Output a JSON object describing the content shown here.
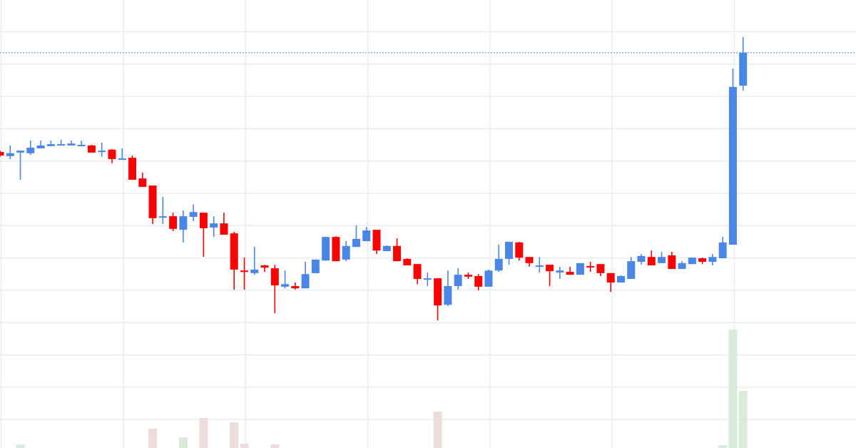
{
  "chart_data": {
    "type": "candlestick",
    "title": "",
    "xlabel": "",
    "ylabel": "",
    "ylim": [
      -8.8,
      129.8
    ],
    "grid": true,
    "y_grid_step": 10,
    "x_grid_every_n_candles": 12,
    "last_price_line": 113.5,
    "colors": {
      "up": "#4a86e8",
      "down": "#ff0000",
      "volume_up": "#d9ebd9",
      "volume_down": "#eedcdc",
      "grid": "#e6eef3",
      "last_price_line": "#4a86e8"
    },
    "candles_ohlc": [
      [
        82.8,
        83.2,
        81.3,
        81.7
      ],
      [
        81.5,
        84.8,
        80.6,
        82.4
      ],
      [
        82.6,
        83.2,
        74.2,
        83.2
      ],
      [
        82.4,
        86.3,
        81.9,
        84.1
      ],
      [
        83.9,
        86.3,
        83.9,
        84.8
      ],
      [
        84.6,
        86.3,
        84.6,
        85.2
      ],
      [
        84.8,
        86.6,
        84.8,
        85.2
      ],
      [
        84.8,
        86.3,
        84.8,
        85.4
      ],
      [
        84.6,
        86.3,
        84.6,
        85.0
      ],
      [
        84.8,
        85.0,
        82.6,
        82.6
      ],
      [
        82.8,
        85.7,
        81.3,
        83.2
      ],
      [
        83.5,
        83.7,
        79.3,
        80.6
      ],
      [
        80.4,
        83.9,
        80.4,
        80.8
      ],
      [
        81.0,
        81.7,
        74.2,
        74.2
      ],
      [
        74.6,
        76.4,
        72.0,
        72.0
      ],
      [
        72.4,
        72.4,
        60.5,
        62.3
      ],
      [
        62.5,
        68.9,
        60.5,
        62.9
      ],
      [
        62.9,
        64.0,
        58.3,
        59.0
      ],
      [
        58.7,
        64.7,
        54.8,
        62.9
      ],
      [
        62.7,
        66.5,
        61.4,
        64.2
      ],
      [
        64.0,
        64.0,
        50.3,
        59.2
      ],
      [
        59.4,
        62.9,
        56.5,
        60.7
      ],
      [
        60.7,
        64.0,
        57.2,
        57.2
      ],
      [
        57.6,
        58.1,
        40.2,
        46.4
      ],
      [
        46.1,
        50.1,
        40.2,
        45.7
      ],
      [
        45.3,
        53.4,
        44.8,
        46.4
      ],
      [
        47.7,
        47.9,
        45.7,
        47.0
      ],
      [
        46.8,
        47.9,
        32.9,
        41.5
      ],
      [
        41.1,
        46.1,
        40.6,
        41.9
      ],
      [
        41.3,
        42.4,
        40.2,
        40.6
      ],
      [
        40.6,
        48.8,
        40.6,
        45.0
      ],
      [
        45.3,
        49.5,
        45.3,
        49.5
      ],
      [
        49.2,
        56.5,
        49.2,
        56.5
      ],
      [
        56.5,
        56.7,
        49.0,
        49.0
      ],
      [
        49.5,
        55.2,
        49.0,
        53.7
      ],
      [
        53.4,
        60.1,
        53.4,
        55.9
      ],
      [
        55.2,
        59.6,
        55.2,
        58.5
      ],
      [
        58.7,
        58.7,
        51.2,
        52.3
      ],
      [
        52.1,
        53.9,
        52.1,
        53.7
      ],
      [
        53.7,
        56.1,
        49.0,
        49.0
      ],
      [
        49.7,
        49.9,
        47.7,
        47.7
      ],
      [
        48.1,
        48.1,
        41.9,
        43.5
      ],
      [
        43.6,
        45.5,
        41.3,
        43.7
      ],
      [
        43.7,
        43.7,
        30.7,
        35.3
      ],
      [
        35.5,
        46.1,
        35.1,
        41.3
      ],
      [
        41.3,
        46.8,
        40.2,
        44.8
      ],
      [
        44.8,
        45.5,
        43.5,
        44.2
      ],
      [
        44.4,
        45.0,
        40.0,
        41.1
      ],
      [
        41.1,
        46.4,
        41.1,
        46.1
      ],
      [
        46.1,
        54.1,
        45.7,
        49.7
      ],
      [
        49.7,
        55.0,
        47.9,
        55.0
      ],
      [
        54.8,
        55.0,
        49.2,
        50.1
      ],
      [
        50.3,
        50.3,
        47.3,
        48.4
      ],
      [
        47.6,
        50.3,
        45.5,
        47.7
      ],
      [
        47.9,
        47.9,
        41.3,
        45.9
      ],
      [
        45.5,
        47.3,
        43.5,
        46.1
      ],
      [
        45.7,
        47.3,
        44.8,
        44.8
      ],
      [
        44.8,
        48.4,
        44.8,
        48.4
      ],
      [
        47.5,
        48.8,
        45.7,
        47.3
      ],
      [
        48.1,
        48.1,
        44.4,
        45.3
      ],
      [
        45.3,
        45.3,
        39.5,
        42.4
      ],
      [
        42.4,
        44.6,
        42.4,
        44.4
      ],
      [
        43.5,
        50.3,
        43.5,
        49.0
      ],
      [
        48.8,
        51.2,
        47.9,
        50.6
      ],
      [
        50.3,
        52.3,
        47.7,
        47.7
      ],
      [
        48.4,
        51.9,
        48.4,
        50.3
      ],
      [
        50.8,
        51.9,
        46.6,
        46.6
      ],
      [
        46.6,
        49.0,
        46.6,
        48.4
      ],
      [
        48.1,
        50.1,
        48.1,
        50.1
      ],
      [
        49.9,
        50.1,
        48.1,
        48.8
      ],
      [
        48.8,
        51.2,
        47.7,
        50.3
      ],
      [
        49.9,
        56.5,
        49.9,
        54.8
      ],
      [
        54.1,
        108.6,
        54.1,
        102.9
      ],
      [
        103.3,
        118.3,
        101.8,
        113.5
      ]
    ],
    "volumes": [
      0,
      0,
      50,
      0,
      0,
      0,
      0,
      0,
      0,
      0,
      0,
      0,
      0,
      0,
      0,
      270,
      0,
      0,
      150,
      0,
      420,
      0,
      0,
      360,
      60,
      0,
      0,
      50,
      0,
      0,
      0,
      0,
      0,
      0,
      0,
      0,
      0,
      0,
      0,
      0,
      0,
      0,
      0,
      510,
      0,
      0,
      0,
      0,
      0,
      0,
      0,
      0,
      0,
      0,
      0,
      0,
      0,
      0,
      0,
      0,
      0,
      0,
      0,
      0,
      0,
      0,
      0,
      0,
      0,
      0,
      0,
      40,
      1660,
      800
    ]
  }
}
